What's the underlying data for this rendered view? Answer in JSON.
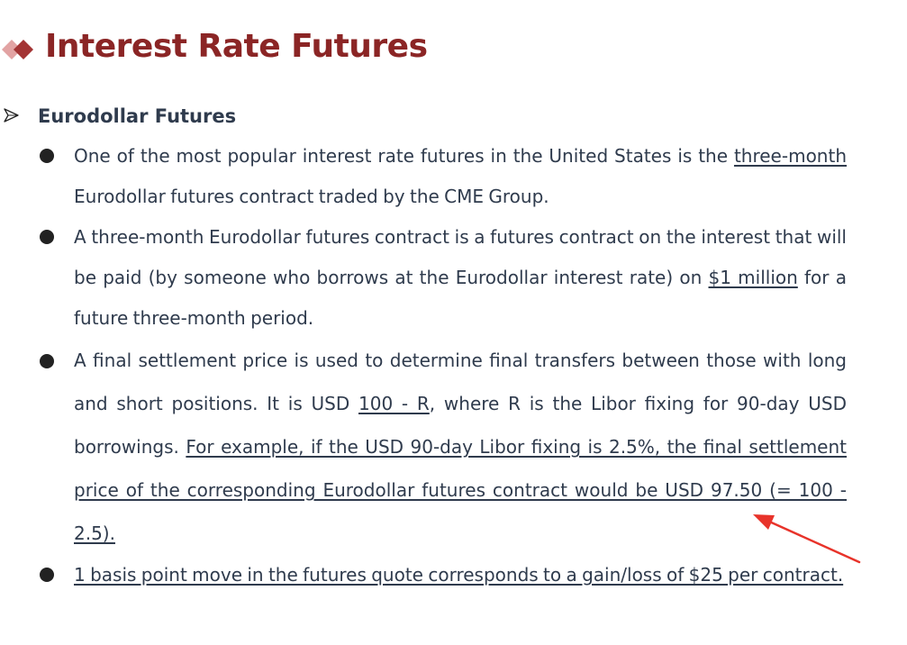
{
  "slide": {
    "title": "Interest Rate Futures",
    "accent_color": "#8b2525",
    "section_heading": "Eurodollar Futures"
  },
  "bullets": [
    {
      "b1_underlined": "three-month",
      "b1_text": "One of the most popular interest rate futures in the United States is the three-month Eurodollar futures contract traded by the CME Group."
    },
    {
      "b2_underlined": "$1 million",
      "b2_text": "A three-month Eurodollar futures contract is a futures contract on the interest that will be paid (by someone who borrows at the Eurodollar interest rate) on $1 million for a future three-month period."
    },
    {
      "b3_underlined_1": "100 - R",
      "b3_underlined_2": "For example, if the USD 90-day Libor fixing is 2.5%, the final settlement price of the corresponding Eurodollar futures contract would be USD 97.50 (= 100 - 2.5).",
      "b3_text": "A final settlement price is used to determine final transfers between those with long and short positions. It is USD 100 - R, where R is the Libor fixing for 90-day USD borrowings."
    },
    {
      "b4_underlined": "1 basis point move in the futures quote corresponds to a gain/loss of $25 per contract."
    }
  ],
  "annotation": {
    "arrow_color": "#e8332a",
    "icon": "red-pointer-arrow"
  }
}
